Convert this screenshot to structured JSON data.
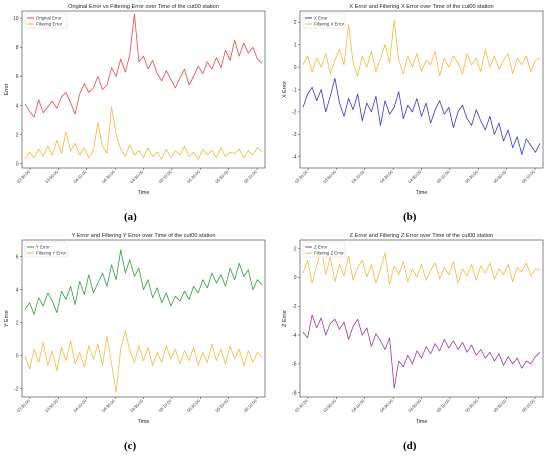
{
  "captions": [
    "(a)",
    "(b)",
    "(c)",
    "(d)"
  ],
  "chart_data": [
    {
      "type": "line",
      "title": "Original Error vs Filtering Error over Time of the cut00 station",
      "xlabel": "Time",
      "ylabel": "Error",
      "ylim": [
        -0.3,
        10.5
      ],
      "yticks": [
        0,
        2,
        4,
        6,
        8,
        10
      ],
      "xtick_labels": [
        "03:30:00",
        "03:50:00",
        "04:10:00",
        "04:30:00",
        "04:50:00",
        "05:10:00",
        "05:30:00",
        "05:50:00",
        "06:10:00"
      ],
      "legend_position": "top-left",
      "grid": false,
      "series": [
        {
          "name": "Original Error",
          "color": "#e8474c",
          "values": [
            4.1,
            3.6,
            3.2,
            4.4,
            3.5,
            3.9,
            4.3,
            3.8,
            4.6,
            4.9,
            4.2,
            3.4,
            4.8,
            5.5,
            4.9,
            5.2,
            6.0,
            5.1,
            5.4,
            6.6,
            6.0,
            7.2,
            6.3,
            7.5,
            10.3,
            7.0,
            7.4,
            6.5,
            7.1,
            6.2,
            5.7,
            6.4,
            5.8,
            5.2,
            5.9,
            6.5,
            5.4,
            6.0,
            6.7,
            6.2,
            7.0,
            6.5,
            7.3,
            6.6,
            7.8,
            7.1,
            8.5,
            7.4,
            8.3,
            7.6,
            8.0,
            7.2,
            6.9
          ]
        },
        {
          "name": "Filtering Error",
          "color": "#f6b63f",
          "values": [
            0.3,
            0.8,
            0.4,
            1.0,
            0.5,
            1.2,
            0.6,
            1.6,
            0.7,
            2.2,
            0.9,
            1.4,
            0.6,
            1.1,
            0.4,
            0.9,
            2.8,
            1.2,
            0.7,
            3.9,
            2.0,
            1.0,
            0.5,
            1.3,
            0.6,
            0.9,
            0.4,
            1.1,
            0.5,
            0.8,
            0.3,
            1.0,
            0.4,
            0.9,
            0.6,
            1.2,
            0.5,
            0.8,
            0.3,
            1.0,
            0.6,
            0.9,
            0.4,
            1.1,
            0.5,
            0.8,
            0.7,
            1.0,
            0.4,
            0.9,
            0.6,
            1.1,
            0.8
          ]
        }
      ]
    },
    {
      "type": "line",
      "title": "X Error and Filtering X Error over Time of the cut00 station",
      "xlabel": "Time",
      "ylabel": "X Error",
      "ylim": [
        -4.5,
        2.5
      ],
      "yticks": [
        -4,
        -3,
        -2,
        -1,
        0,
        1,
        2
      ],
      "xtick_labels": [
        "03:30:00",
        "03:50:00",
        "04:10:00",
        "04:30:00",
        "04:50:00",
        "05:10:00",
        "05:30:00",
        "05:50:00",
        "06:10:00"
      ],
      "legend_position": "top-left",
      "grid": false,
      "series": [
        {
          "name": "X Error",
          "color": "#3535d8",
          "values": [
            -1.8,
            -1.2,
            -0.9,
            -1.5,
            -1.0,
            -2.0,
            -1.3,
            -0.5,
            -1.6,
            -2.2,
            -1.4,
            -1.9,
            -1.2,
            -2.4,
            -1.6,
            -2.0,
            -1.3,
            -2.6,
            -1.5,
            -2.1,
            -1.8,
            -1.1,
            -2.3,
            -1.7,
            -2.0,
            -1.4,
            -2.2,
            -1.6,
            -2.5,
            -1.9,
            -1.5,
            -2.1,
            -1.8,
            -2.7,
            -2.0,
            -1.7,
            -2.3,
            -2.6,
            -1.9,
            -2.4,
            -2.8,
            -2.2,
            -3.0,
            -2.5,
            -3.3,
            -2.8,
            -3.6,
            -3.1,
            -3.9,
            -3.2,
            -3.5,
            -3.8,
            -3.4
          ]
        },
        {
          "name": "Filtering X Error",
          "color": "#f6b63f",
          "values": [
            0.1,
            0.5,
            -0.2,
            0.4,
            0.0,
            0.6,
            -0.3,
            0.3,
            0.8,
            0.1,
            1.9,
            0.2,
            -0.4,
            0.5,
            0.0,
            0.7,
            -0.2,
            0.4,
            1.0,
            0.2,
            2.1,
            0.3,
            -0.3,
            0.5,
            0.0,
            0.6,
            -0.2,
            0.3,
            0.1,
            0.7,
            -0.4,
            0.4,
            0.0,
            0.5,
            0.2,
            -0.3,
            0.6,
            0.1,
            0.4,
            -0.2,
            0.8,
            0.0,
            0.5,
            -0.1,
            0.3,
            0.6,
            -0.3,
            0.4,
            0.1,
            0.5,
            -0.2,
            0.3,
            0.4
          ]
        }
      ]
    },
    {
      "type": "line",
      "title": "Y Error and Filtering Y Error over Time of the cut00 station",
      "xlabel": "Time",
      "ylabel": "Y Error",
      "ylim": [
        -2.5,
        7.0
      ],
      "yticks": [
        -2,
        0,
        2,
        4,
        6
      ],
      "xtick_labels": [
        "03:30:00",
        "03:50:00",
        "04:10:00",
        "04:30:00",
        "04:50:00",
        "05:10:00",
        "05:30:00",
        "05:50:00",
        "06:10:00"
      ],
      "legend_position": "top-left",
      "grid": false,
      "series": [
        {
          "name": "Y Error",
          "color": "#2f9e3f",
          "values": [
            2.8,
            3.2,
            2.5,
            3.5,
            3.0,
            3.8,
            3.3,
            2.6,
            3.9,
            3.4,
            4.2,
            3.1,
            4.5,
            3.7,
            4.9,
            3.8,
            4.4,
            5.0,
            4.2,
            5.5,
            4.6,
            6.4,
            5.0,
            5.8,
            4.8,
            5.3,
            4.0,
            4.6,
            3.5,
            4.1,
            3.2,
            3.8,
            3.0,
            3.6,
            3.3,
            3.9,
            3.4,
            4.2,
            3.8,
            4.6,
            4.1,
            5.0,
            4.4,
            4.9,
            4.2,
            5.3,
            4.6,
            5.6,
            4.8,
            5.2,
            4.0,
            4.6,
            4.3
          ]
        },
        {
          "name": "Filtering Y Error",
          "color": "#f6b63f",
          "values": [
            0.0,
            -0.8,
            0.4,
            -0.4,
            0.8,
            -0.6,
            0.3,
            -0.9,
            0.5,
            -0.3,
            0.9,
            -0.5,
            0.2,
            -0.7,
            0.6,
            -0.2,
            0.7,
            -0.6,
            1.2,
            -0.5,
            -2.2,
            0.4,
            1.5,
            0.3,
            -0.4,
            0.6,
            -0.3,
            0.5,
            -0.6,
            0.2,
            -0.4,
            0.6,
            -0.2,
            0.4,
            -0.5,
            0.3,
            -0.3,
            0.5,
            -0.6,
            0.2,
            -0.4,
            0.7,
            -0.3,
            0.4,
            -0.5,
            0.6,
            -0.2,
            0.4,
            -0.6,
            0.3,
            -0.4,
            0.2,
            -0.1
          ]
        }
      ]
    },
    {
      "type": "line",
      "title": "Z Error and Filtering Z Error over Time of the cut00 station",
      "xlabel": "Time",
      "ylabel": "Z Error",
      "ylim": [
        -8.3,
        2.6
      ],
      "yticks": [
        -8,
        -6,
        -4,
        -2,
        0,
        2
      ],
      "xtick_labels": [
        "03:30:00",
        "03:50:00",
        "04:10:00",
        "04:30:00",
        "04:50:00",
        "05:10:00",
        "05:30:00",
        "05:50:00",
        "06:10:00"
      ],
      "legend_position": "top-left",
      "grid": false,
      "series": [
        {
          "name": "Z Error",
          "color": "#9a3aa3",
          "values": [
            -3.8,
            -4.2,
            -2.6,
            -3.5,
            -2.8,
            -4.0,
            -3.2,
            -2.9,
            -3.6,
            -3.1,
            -4.3,
            -3.4,
            -2.9,
            -4.0,
            -3.5,
            -4.8,
            -3.9,
            -4.4,
            -5.0,
            -4.2,
            -7.7,
            -5.8,
            -6.2,
            -5.4,
            -6.0,
            -5.1,
            -5.6,
            -4.8,
            -5.3,
            -4.6,
            -5.1,
            -4.3,
            -4.9,
            -4.4,
            -5.0,
            -4.5,
            -5.2,
            -4.7,
            -5.4,
            -5.0,
            -5.6,
            -5.2,
            -5.8,
            -5.3,
            -6.1,
            -5.5,
            -6.0,
            -5.6,
            -6.3,
            -5.8,
            -6.0,
            -5.5,
            -5.2
          ]
        },
        {
          "name": "Filtering Z Error",
          "color": "#f6b63f",
          "values": [
            0.3,
            1.2,
            -0.4,
            0.8,
            2.0,
            0.2,
            1.4,
            -0.3,
            0.9,
            0.1,
            1.5,
            -0.2,
            0.7,
            1.2,
            0.0,
            0.9,
            -0.4,
            0.6,
            1.7,
            -0.5,
            0.8,
            0.2,
            1.1,
            -0.3,
            0.6,
            0.0,
            0.9,
            -0.2,
            0.5,
            1.0,
            -0.1,
            0.7,
            0.2,
            1.1,
            -0.4,
            0.6,
            0.1,
            0.9,
            -0.2,
            0.8,
            0.3,
            1.0,
            -0.1,
            0.6,
            0.2,
            0.9,
            -0.3,
            0.7,
            0.4,
            1.0,
            0.1,
            0.6,
            0.5
          ]
        }
      ]
    }
  ]
}
